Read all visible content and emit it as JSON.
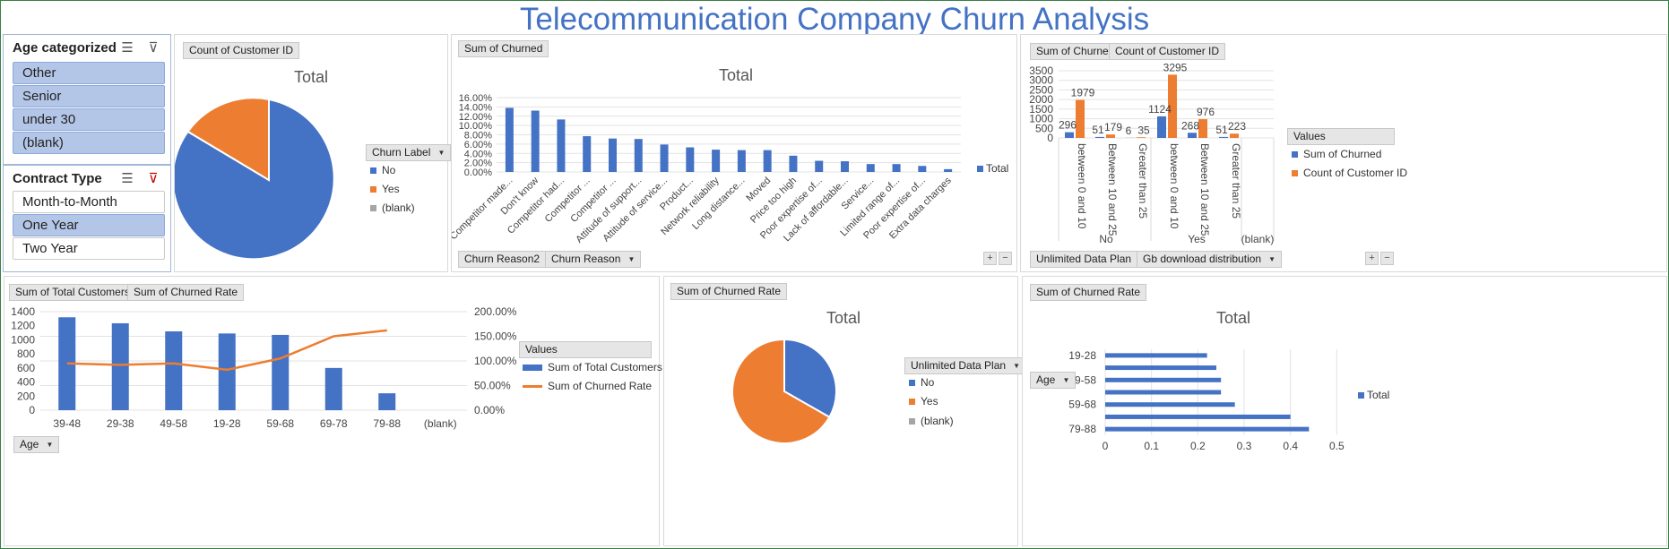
{
  "title": "Telecommunication Company Churn Analysis",
  "colors": {
    "blue": "#4472c4",
    "orange": "#ed7d31",
    "gray": "#a5a5a5"
  },
  "slicers": {
    "age": {
      "header": "Age categorized",
      "items": [
        {
          "label": "Other"
        },
        {
          "label": "Senior"
        },
        {
          "label": "under 30"
        },
        {
          "label": "(blank)"
        }
      ]
    },
    "contract": {
      "header": "Contract Type",
      "items": [
        {
          "label": "Month-to-Month"
        },
        {
          "label": "One Year"
        },
        {
          "label": "Two Year"
        }
      ]
    }
  },
  "pie1": {
    "field": "Count of Customer ID",
    "title": "Total",
    "legend_title": "Churn Label",
    "legend": [
      {
        "label": "No",
        "color": "#4472c4"
      },
      {
        "label": "Yes",
        "color": "#ed7d31"
      },
      {
        "label": "(blank)",
        "color": "#a5a5a5"
      }
    ]
  },
  "reasons": {
    "field": "Sum of Churned",
    "title": "Total",
    "legend": "Total",
    "filters": [
      "Churn Reason2",
      "Churn Reason"
    ]
  },
  "plan": {
    "fields": [
      "Sum of Churned",
      "Count of Customer ID"
    ],
    "filters": [
      "Unlimited Data Plan",
      "Gb download distribution"
    ],
    "values_title": "Values",
    "legend": [
      "Sum of Churned",
      "Count of Customer ID"
    ]
  },
  "agecombo": {
    "fields": [
      "Sum of Total Customers",
      "Sum of Churned Rate"
    ],
    "values_title": "Values",
    "legend": [
      "Sum of Total Customers",
      "Sum of Churned Rate"
    ],
    "axis_button": "Age"
  },
  "pie2": {
    "field": "Sum of Churned Rate",
    "title": "Total",
    "legend_title": "Unlimited Data Plan",
    "legend": [
      {
        "label": "No",
        "color": "#4472c4"
      },
      {
        "label": "Yes",
        "color": "#ed7d31"
      },
      {
        "label": "(blank)",
        "color": "#a5a5a5"
      }
    ]
  },
  "agebar": {
    "field": "Sum of Churned Rate",
    "title": "Total",
    "legend": "Total",
    "axis_button": "Age"
  },
  "chart_data": [
    {
      "type": "pie",
      "title": "Total",
      "categories": [
        "No",
        "Yes",
        "(blank)"
      ],
      "values": [
        73.5,
        26.5,
        0
      ]
    },
    {
      "type": "bar",
      "title": "Total",
      "categories": [
        "Competitor made...",
        "Don't know",
        "Competitor had...",
        "Competitor ...",
        "Competitor ...",
        "Attitude of support...",
        "Attitude of service...",
        "Product...",
        "Network reliability",
        "Long distance...",
        "Moved",
        "Price too high",
        "Poor expertise of...",
        "Lack of affordable...",
        "Service...",
        "Limited range of...",
        "Poor expertise of...",
        "Extra data charges"
      ],
      "values": [
        13.8,
        13.2,
        11.3,
        7.7,
        7.2,
        7.1,
        5.9,
        5.3,
        4.8,
        4.7,
        4.7,
        3.5,
        2.4,
        2.3,
        1.7,
        1.7,
        1.3,
        0.6
      ],
      "ylim": [
        0,
        16
      ],
      "y_ticks": [
        "0.00%",
        "2.00%",
        "4.00%",
        "6.00%",
        "8.00%",
        "10.00%",
        "12.00%",
        "14.00%",
        "16.00%"
      ]
    },
    {
      "type": "bar",
      "title": "",
      "groups": [
        "No",
        "Yes",
        "(blank)"
      ],
      "categories": [
        "between 0 and 10",
        "Between 10 and 25",
        "Greater than 25",
        "between 0 and 10",
        "Between 10 and 25",
        "Greater than 25"
      ],
      "series": [
        {
          "name": "Sum of Churned",
          "values": [
            296,
            51,
            6,
            1124,
            268,
            51
          ]
        },
        {
          "name": "Count of Customer ID",
          "values": [
            1979,
            179,
            35,
            3295,
            976,
            223
          ]
        }
      ],
      "ylim": [
        0,
        3500
      ],
      "y_ticks": [
        "0",
        "500",
        "1000",
        "1500",
        "2000",
        "2500",
        "3000",
        "3500"
      ]
    },
    {
      "type": "bar",
      "title": "",
      "categories": [
        "39-48",
        "29-38",
        "49-58",
        "19-28",
        "59-68",
        "69-78",
        "79-88",
        "(blank)"
      ],
      "series": [
        {
          "name": "Sum of Total Customers",
          "values": [
            1320,
            1235,
            1120,
            1090,
            1070,
            600,
            240,
            null
          ]
        },
        {
          "name": "Sum of Churned Rate",
          "values": [
            95,
            92,
            95,
            82,
            105,
            150,
            162,
            null
          ]
        }
      ],
      "ylim": [
        0,
        1400
      ],
      "y2lim": [
        0,
        200
      ],
      "y_ticks": [
        "0",
        "200",
        "400",
        "600",
        "800",
        "1000",
        "1200",
        "1400"
      ],
      "y2_ticks": [
        "0.00%",
        "50.00%",
        "100.00%",
        "150.00%",
        "200.00%"
      ]
    },
    {
      "type": "pie",
      "title": "Total",
      "categories": [
        "No",
        "Yes",
        "(blank)"
      ],
      "values": [
        34,
        66,
        0
      ]
    },
    {
      "type": "bar",
      "title": "Total",
      "categories": [
        "19-28",
        "",
        "49-58",
        "",
        "59-68",
        "",
        "79-88"
      ],
      "values": [
        0.22,
        0.24,
        0.25,
        0.25,
        0.28,
        0.4,
        0.44
      ],
      "xlim": [
        0,
        0.6
      ],
      "x_ticks": [
        "0",
        "0.1",
        "0.2",
        "0.3",
        "0.4",
        "0.5"
      ]
    }
  ]
}
